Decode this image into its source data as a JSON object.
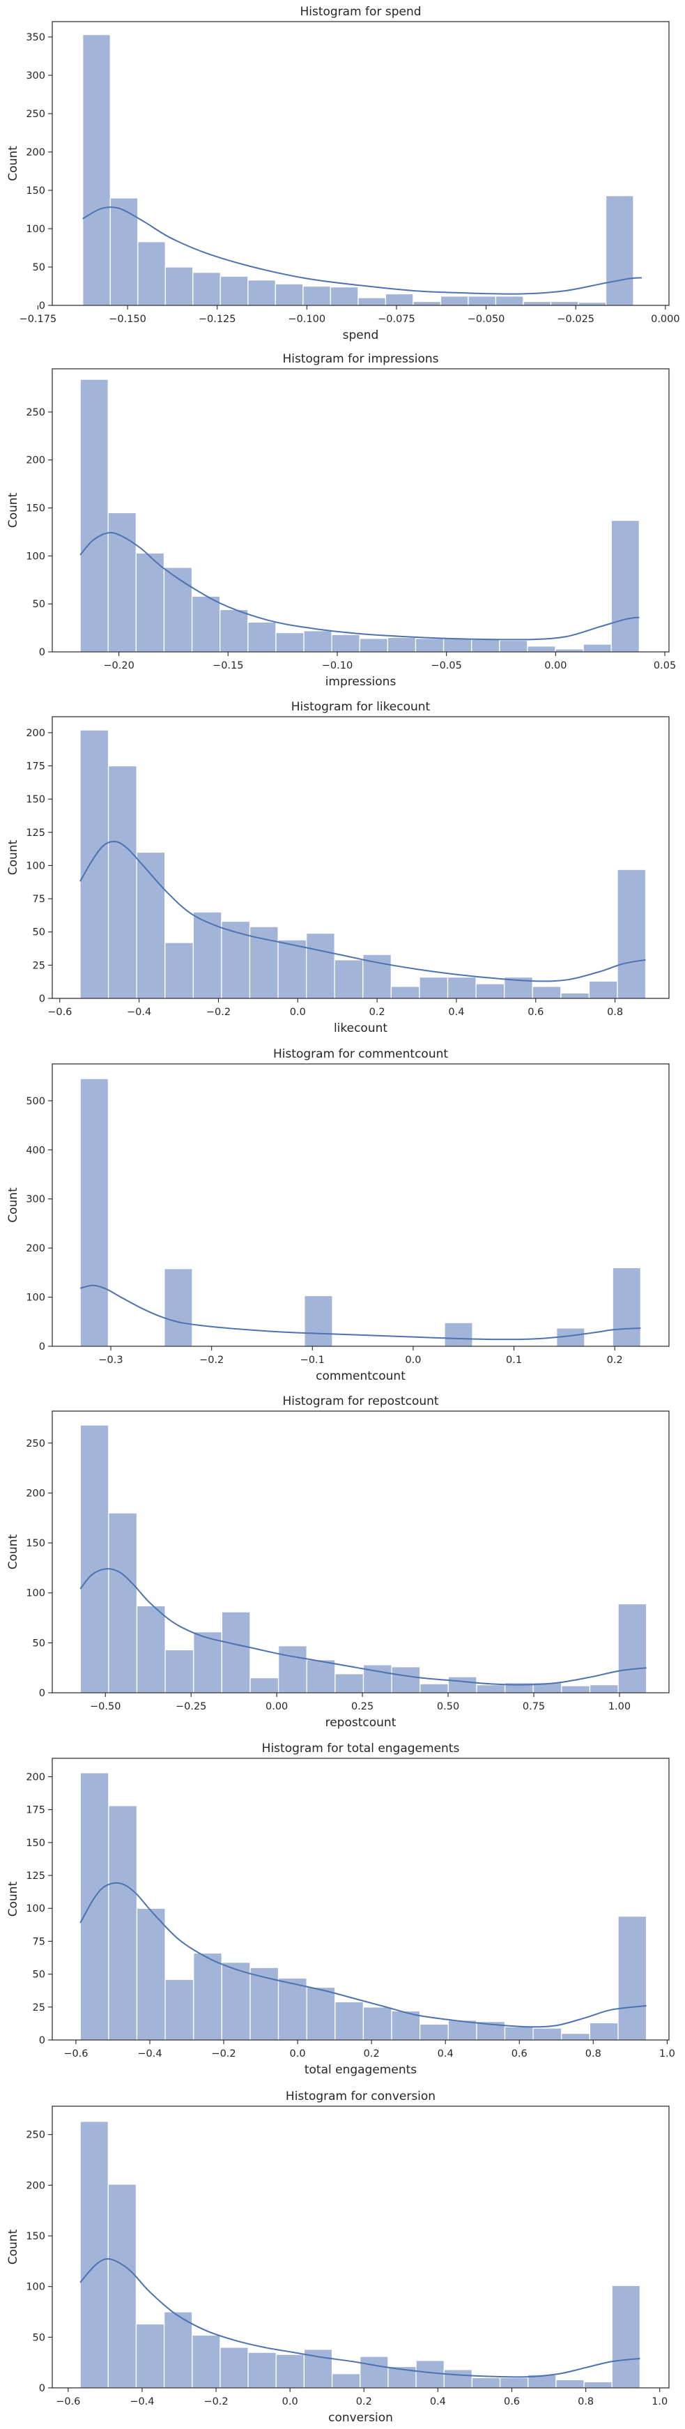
{
  "chart_data": [
    {
      "type": "bar",
      "title": "Histogram for spend",
      "xlabel": "spend",
      "ylabel": "Count",
      "xlim": [
        -0.171,
        0.001
      ],
      "ylim": [
        0,
        370
      ],
      "xticks": [
        -0.175,
        -0.15,
        -0.125,
        -0.1,
        -0.075,
        -0.05,
        -0.025,
        0.0
      ],
      "xtick_labels": [
        "−0.175",
        "−0.150",
        "−0.125",
        "−0.100",
        "−0.075",
        "−0.050",
        "−0.025",
        "0.000"
      ],
      "yticks": [
        0,
        50,
        100,
        150,
        200,
        250,
        300,
        350
      ],
      "ytick_labels": [
        "0",
        "50",
        "100",
        "150",
        "200",
        "250",
        "300",
        "350"
      ],
      "bin_start": -0.1625,
      "bin_width": 0.00768,
      "values": [
        353,
        140,
        83,
        50,
        43,
        38,
        33,
        28,
        25,
        24,
        10,
        15,
        5,
        12,
        12,
        12,
        5,
        5,
        4,
        143
      ],
      "kde": {
        "x": [
          -0.1625,
          -0.158,
          -0.1545,
          -0.151,
          -0.145,
          -0.138,
          -0.128,
          -0.115,
          -0.1,
          -0.085,
          -0.07,
          -0.055,
          -0.04,
          -0.028,
          -0.018,
          -0.01,
          -0.0066
        ],
        "y": [
          113,
          125,
          128,
          124,
          108,
          88,
          68,
          50,
          35,
          26,
          19,
          16,
          15,
          19,
          28,
          35,
          36
        ]
      }
    },
    {
      "type": "bar",
      "title": "Histogram for impressions",
      "xlabel": "impressions",
      "ylabel": "Count",
      "xlim": [
        -0.2305,
        0.0519
      ],
      "ylim": [
        0,
        295
      ],
      "xticks": [
        -0.2,
        -0.15,
        -0.1,
        -0.05,
        0.0,
        0.05
      ],
      "xtick_labels": [
        "−0.20",
        "−0.15",
        "−0.10",
        "−0.05",
        "0.00",
        "0.05"
      ],
      "yticks": [
        0,
        50,
        100,
        150,
        200,
        250
      ],
      "ytick_labels": [
        "0",
        "50",
        "100",
        "150",
        "200",
        "250"
      ],
      "bin_start": -0.2177,
      "bin_width": 0.0128,
      "values": [
        284,
        145,
        103,
        88,
        58,
        44,
        31,
        20,
        22,
        18,
        14,
        15,
        14,
        14,
        13,
        12,
        6,
        3,
        8,
        137
      ],
      "kde": {
        "x": [
          -0.2177,
          -0.212,
          -0.205,
          -0.199,
          -0.19,
          -0.18,
          -0.165,
          -0.15,
          -0.13,
          -0.11,
          -0.09,
          -0.07,
          -0.05,
          -0.03,
          -0.01,
          0.005,
          0.02,
          0.032,
          0.0383
        ],
        "y": [
          101,
          116,
          124,
          121,
          108,
          88,
          65,
          47,
          32,
          24,
          19,
          16,
          14,
          13,
          13,
          16,
          26,
          34,
          36
        ]
      }
    },
    {
      "type": "bar",
      "title": "Histogram for likecount",
      "xlabel": "likecount",
      "ylabel": "Count",
      "xlim": [
        -0.619,
        0.936
      ],
      "ylim": [
        0,
        212
      ],
      "xticks": [
        -0.6,
        -0.4,
        -0.2,
        0.0,
        0.2,
        0.4,
        0.6,
        0.8
      ],
      "xtick_labels": [
        "−0.6",
        "−0.4",
        "−0.2",
        "0.0",
        "0.2",
        "0.4",
        "0.6",
        "0.8"
      ],
      "yticks": [
        0,
        25,
        50,
        75,
        100,
        125,
        150,
        175,
        200
      ],
      "ytick_labels": [
        "0",
        "25",
        "50",
        "75",
        "100",
        "125",
        "150",
        "175",
        "200"
      ],
      "bin_start": -0.5487,
      "bin_width": 0.0713,
      "values": [
        202,
        175,
        110,
        42,
        65,
        58,
        54,
        44,
        49,
        29,
        33,
        9,
        16,
        16,
        11,
        16,
        9,
        4,
        13,
        97
      ],
      "kde": {
        "x": [
          -0.5487,
          -0.52,
          -0.49,
          -0.46,
          -0.43,
          -0.39,
          -0.33,
          -0.27,
          -0.2,
          -0.12,
          -0.04,
          0.04,
          0.12,
          0.2,
          0.3,
          0.4,
          0.5,
          0.6,
          0.68,
          0.76,
          0.82,
          0.877
        ],
        "y": [
          88,
          103,
          115,
          118,
          113,
          100,
          80,
          64,
          54,
          47,
          42,
          37,
          32,
          27,
          22,
          18,
          15,
          13,
          14,
          20,
          26,
          29
        ]
      }
    },
    {
      "type": "bar",
      "title": "Histogram for commentcount",
      "xlabel": "commentcount",
      "ylabel": "Count",
      "xlim": [
        -0.3581,
        0.2538
      ],
      "ylim": [
        0,
        575
      ],
      "xticks": [
        -0.3,
        -0.2,
        -0.1,
        0.0,
        0.1,
        0.2
      ],
      "xtick_labels": [
        "−0.3",
        "−0.2",
        "−0.1",
        "0.0",
        "0.1",
        "0.2"
      ],
      "yticks": [
        0,
        100,
        200,
        300,
        400,
        500
      ],
      "ytick_labels": [
        "0",
        "100",
        "200",
        "300",
        "400",
        "500"
      ],
      "bin_start": -0.3303,
      "bin_width": 0.0278,
      "values": [
        545,
        0,
        0,
        158,
        0,
        0,
        0,
        0,
        103,
        0,
        0,
        0,
        0,
        48,
        0,
        0,
        0,
        37,
        0,
        160
      ],
      "kde": {
        "x": [
          -0.3303,
          -0.318,
          -0.305,
          -0.29,
          -0.27,
          -0.25,
          -0.23,
          -0.2,
          -0.16,
          -0.12,
          -0.08,
          -0.04,
          0.0,
          0.04,
          0.08,
          0.12,
          0.15,
          0.18,
          0.2,
          0.2257
        ],
        "y": [
          118,
          124,
          117,
          100,
          78,
          60,
          48,
          40,
          33,
          28,
          25,
          22,
          19,
          16,
          14,
          15,
          20,
          28,
          34,
          37
        ]
      }
    },
    {
      "type": "bar",
      "title": "Histogram for repostcount",
      "xlabel": "repostcount",
      "ylabel": "Count",
      "xlim": [
        -0.655,
        1.1444
      ],
      "ylim": [
        0,
        282
      ],
      "xticks": [
        -0.5,
        -0.25,
        0.0,
        0.25,
        0.5,
        0.75,
        1.0
      ],
      "xtick_labels": [
        "−0.50",
        "−0.25",
        "0.00",
        "0.25",
        "0.50",
        "0.75",
        "1.00"
      ],
      "yticks": [
        0,
        50,
        100,
        150,
        200,
        250
      ],
      "ytick_labels": [
        "0",
        "50",
        "100",
        "150",
        "200",
        "250"
      ],
      "bin_start": -0.5732,
      "bin_width": 0.0826,
      "values": [
        268,
        180,
        87,
        43,
        61,
        81,
        15,
        47,
        33,
        19,
        28,
        26,
        9,
        16,
        8,
        10,
        10,
        7,
        8,
        89
      ],
      "kde": {
        "x": [
          -0.5732,
          -0.54,
          -0.5,
          -0.46,
          -0.42,
          -0.37,
          -0.3,
          -0.22,
          -0.14,
          -0.06,
          0.02,
          0.12,
          0.22,
          0.32,
          0.42,
          0.52,
          0.62,
          0.72,
          0.82,
          0.92,
          1.0,
          1.0788
        ],
        "y": [
          104,
          118,
          124,
          121,
          109,
          90,
          70,
          57,
          50,
          44,
          38,
          32,
          26,
          20,
          15,
          12,
          9,
          8,
          10,
          16,
          22,
          25
        ]
      }
    },
    {
      "type": "bar",
      "title": "Histogram for total engagements",
      "xlabel": "total engagements",
      "ylabel": "Count",
      "xlim": [
        -0.664,
        1.005
      ],
      "ylim": [
        0,
        214
      ],
      "xticks": [
        -0.6,
        -0.4,
        -0.2,
        0.0,
        0.2,
        0.4,
        0.6,
        0.8,
        1.0
      ],
      "xtick_labels": [
        "−0.6",
        "−0.4",
        "−0.2",
        "0.0",
        "0.2",
        "0.4",
        "0.6",
        "0.8",
        "1.0"
      ],
      "yticks": [
        0,
        25,
        50,
        75,
        100,
        125,
        150,
        175,
        200
      ],
      "ytick_labels": [
        "0",
        "25",
        "50",
        "75",
        "100",
        "125",
        "150",
        "175",
        "200"
      ],
      "bin_start": -0.5881,
      "bin_width": 0.0766,
      "values": [
        203,
        178,
        100,
        46,
        66,
        59,
        55,
        47,
        40,
        29,
        25,
        22,
        12,
        15,
        14,
        10,
        9,
        5,
        13,
        94
      ],
      "kde": {
        "x": [
          -0.5881,
          -0.55,
          -0.52,
          -0.48,
          -0.44,
          -0.39,
          -0.32,
          -0.24,
          -0.16,
          -0.08,
          0.0,
          0.08,
          0.16,
          0.24,
          0.32,
          0.42,
          0.52,
          0.62,
          0.7,
          0.78,
          0.85,
          0.9439
        ],
        "y": [
          89,
          108,
          117,
          119,
          112,
          96,
          76,
          62,
          53,
          47,
          42,
          37,
          31,
          25,
          19,
          15,
          12,
          10,
          11,
          17,
          23,
          26
        ]
      }
    },
    {
      "type": "bar",
      "title": "Histogram for conversion",
      "xlabel": "conversion",
      "ylabel": "Count",
      "xlim": [
        -0.643,
        1.025
      ],
      "ylim": [
        0,
        278
      ],
      "xticks": [
        -0.6,
        -0.4,
        -0.2,
        0.0,
        0.2,
        0.4,
        0.6,
        0.8,
        1.0
      ],
      "xtick_labels": [
        "−0.6",
        "−0.4",
        "−0.2",
        "0.0",
        "0.2",
        "0.4",
        "0.6",
        "0.8",
        "1.0"
      ],
      "yticks": [
        0,
        50,
        100,
        150,
        200,
        250
      ],
      "ytick_labels": [
        "0",
        "50",
        "100",
        "150",
        "200",
        "250"
      ],
      "bin_start": -0.5674,
      "bin_width": 0.0757,
      "values": [
        263,
        201,
        63,
        75,
        52,
        40,
        35,
        33,
        38,
        14,
        31,
        21,
        27,
        18,
        10,
        10,
        13,
        8,
        6,
        101
      ],
      "kde": {
        "x": [
          -0.5674,
          -0.53,
          -0.5,
          -0.47,
          -0.43,
          -0.38,
          -0.31,
          -0.23,
          -0.15,
          -0.07,
          0.01,
          0.09,
          0.17,
          0.25,
          0.33,
          0.41,
          0.49,
          0.57,
          0.65,
          0.73,
          0.8,
          0.87,
          0.9466
        ],
        "y": [
          104,
          120,
          127,
          125,
          115,
          95,
          73,
          57,
          47,
          40,
          35,
          30,
          26,
          21,
          17,
          14,
          12,
          11,
          11,
          14,
          20,
          26,
          29
        ]
      }
    }
  ]
}
